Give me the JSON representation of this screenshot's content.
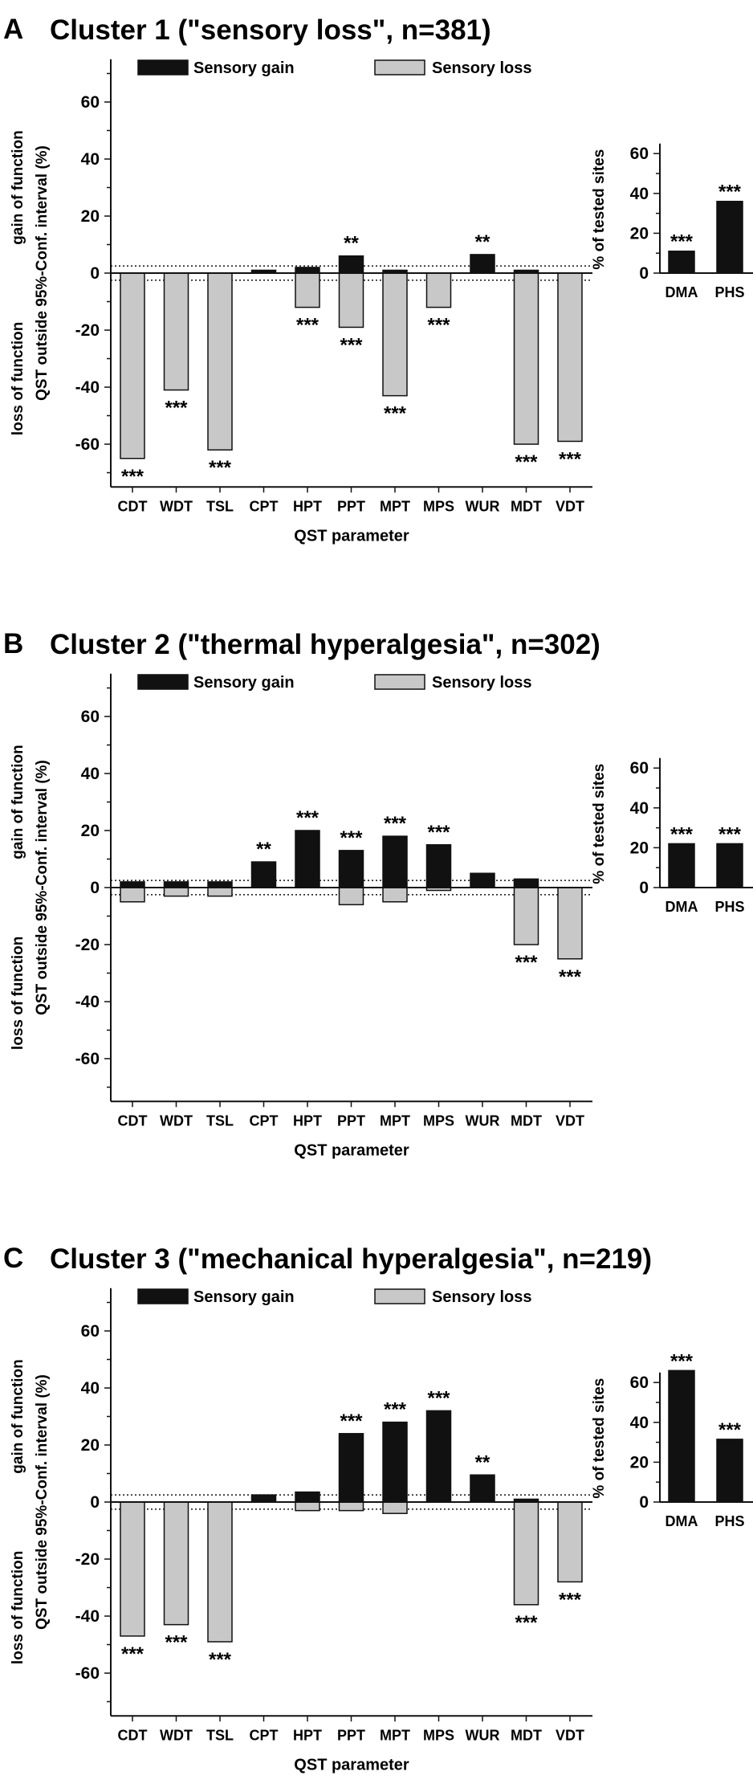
{
  "common": {
    "legend_gain": "Sensory gain",
    "legend_loss": "Sensory loss",
    "y_label_main": "QST outside 95%-Conf. interval (%)",
    "y_label_gain": "gain of function",
    "y_label_loss": "loss of function",
    "x_label": "QST parameter",
    "side_ylabel": "% of tested sites",
    "colors": {
      "gain": "#111111",
      "loss": "#c8c8c8",
      "axis": "#111111"
    }
  },
  "chart_data": [
    {
      "type": "bar",
      "panel_letter": "A",
      "title": "Cluster 1 (\"sensory loss\", n=381)",
      "categories": [
        "CDT",
        "WDT",
        "TSL",
        "CPT",
        "HPT",
        "PPT",
        "MPT",
        "MPS",
        "WUR",
        "MDT",
        "VDT"
      ],
      "series": [
        {
          "name": "Sensory gain",
          "values": [
            0,
            0,
            0,
            1,
            2,
            6,
            1,
            0,
            6.5,
            1,
            0
          ]
        },
        {
          "name": "Sensory loss",
          "values": [
            -65,
            -41,
            -62,
            0,
            -12,
            -19,
            -43,
            -12,
            0,
            -60,
            -59
          ]
        }
      ],
      "gain_sig": [
        "",
        "",
        "",
        "",
        "",
        "**",
        "",
        "",
        "**",
        "",
        ""
      ],
      "loss_sig": [
        "***",
        "***",
        "***",
        "",
        "***",
        "***",
        "***",
        "***",
        "",
        "***",
        "***"
      ],
      "ylim": [
        -75,
        75
      ],
      "yticks": [
        60,
        40,
        20,
        0,
        -20,
        -40,
        -60
      ],
      "threshold_lines": [
        2.5,
        -2.5
      ],
      "side": {
        "categories": [
          "DMA",
          "PHS"
        ],
        "values": [
          11,
          36
        ],
        "sig": [
          "***",
          "***"
        ],
        "ylim": [
          0,
          65
        ],
        "yticks": [
          0,
          20,
          40,
          60
        ]
      }
    },
    {
      "type": "bar",
      "panel_letter": "B",
      "title": "Cluster 2 (\"thermal hyperalgesia\", n=302)",
      "categories": [
        "CDT",
        "WDT",
        "TSL",
        "CPT",
        "HPT",
        "PPT",
        "MPT",
        "MPS",
        "WUR",
        "MDT",
        "VDT"
      ],
      "series": [
        {
          "name": "Sensory gain",
          "values": [
            2,
            2,
            2,
            9,
            20,
            13,
            18,
            15,
            5,
            3,
            0
          ]
        },
        {
          "name": "Sensory loss",
          "values": [
            -5,
            -3,
            -3,
            0,
            0,
            -6,
            -5,
            -1,
            0,
            -20,
            -25
          ]
        }
      ],
      "gain_sig": [
        "",
        "",
        "",
        "**",
        "***",
        "***",
        "***",
        "***",
        "",
        "",
        ""
      ],
      "loss_sig": [
        "",
        "",
        "",
        "",
        "",
        "",
        "",
        "",
        "",
        "***",
        "***"
      ],
      "ylim": [
        -75,
        75
      ],
      "yticks": [
        60,
        40,
        20,
        0,
        -20,
        -40,
        -60
      ],
      "threshold_lines": [
        2.5,
        -2.5
      ],
      "side": {
        "categories": [
          "DMA",
          "PHS"
        ],
        "values": [
          22,
          22
        ],
        "sig": [
          "***",
          "***"
        ],
        "ylim": [
          0,
          65
        ],
        "yticks": [
          0,
          20,
          40,
          60
        ]
      }
    },
    {
      "type": "bar",
      "panel_letter": "C",
      "title": "Cluster 3 (\"mechanical hyperalgesia\", n=219)",
      "categories": [
        "CDT",
        "WDT",
        "TSL",
        "CPT",
        "HPT",
        "PPT",
        "MPT",
        "MPS",
        "WUR",
        "MDT",
        "VDT"
      ],
      "series": [
        {
          "name": "Sensory gain",
          "values": [
            0,
            0,
            0,
            2.5,
            3.5,
            24,
            28,
            32,
            9.5,
            1,
            0
          ]
        },
        {
          "name": "Sensory loss",
          "values": [
            -47,
            -43,
            -49,
            0,
            -3,
            -3,
            -4,
            0,
            0,
            -36,
            -28
          ]
        }
      ],
      "gain_sig": [
        "",
        "",
        "",
        "",
        "",
        "***",
        "***",
        "***",
        "**",
        "",
        ""
      ],
      "loss_sig": [
        "***",
        "***",
        "***",
        "",
        "",
        "",
        "",
        "",
        "",
        "***",
        "***"
      ],
      "ylim": [
        -75,
        75
      ],
      "yticks": [
        60,
        40,
        20,
        0,
        -20,
        -40,
        -60
      ],
      "threshold_lines": [
        2.5,
        -2.5
      ],
      "side": {
        "categories": [
          "DMA",
          "PHS"
        ],
        "values": [
          66,
          31.5
        ],
        "sig": [
          "***",
          "***"
        ],
        "ylim": [
          0,
          65
        ],
        "yticks": [
          0,
          20,
          40,
          60
        ]
      }
    }
  ]
}
